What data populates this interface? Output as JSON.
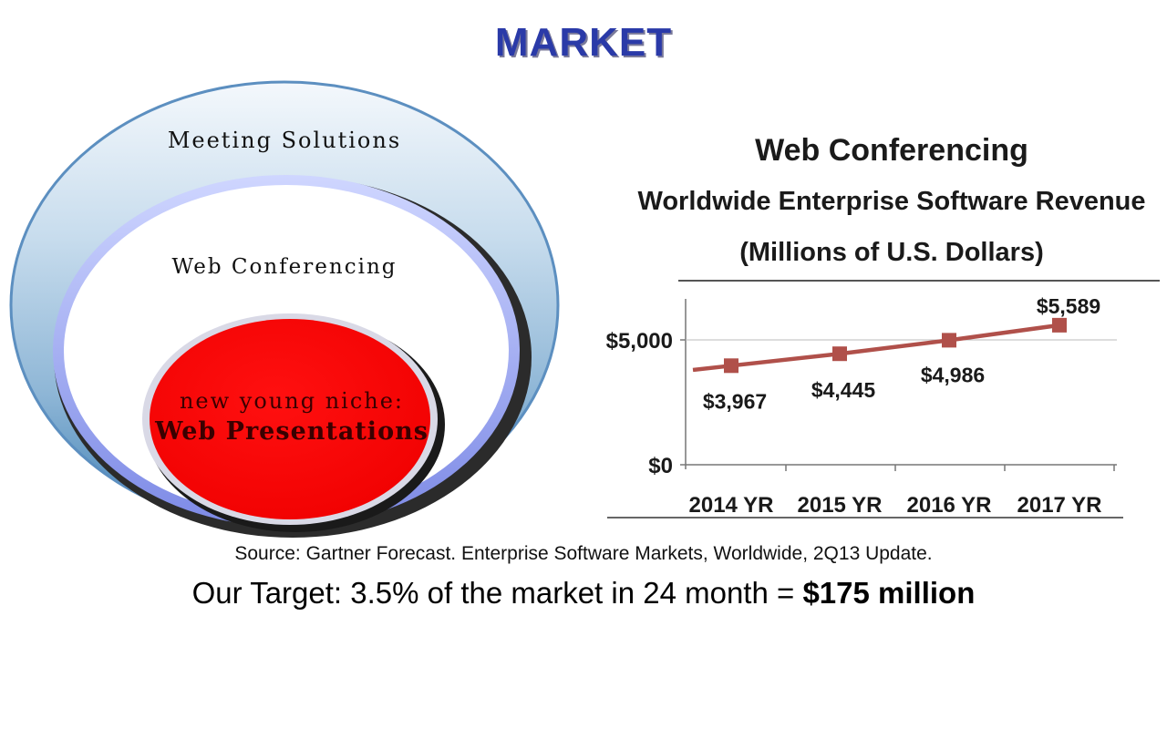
{
  "slide": {
    "title": "MARKET",
    "source": "Source: Gartner Forecast. Enterprise Software Markets, Worldwide, 2Q13 Update.",
    "target_prefix": "Our Target: 3.5% of the market in 24 month = ",
    "target_value": "$175 million"
  },
  "venn": {
    "outer_label": "Meeting Solutions",
    "middle_label": "Web Conferencing",
    "inner_label_line1": "new young niche:",
    "inner_label_line2": "Web Presentations",
    "colors": {
      "outer": "#6f9fc6",
      "middle": "#ffffff",
      "inner": "#ff0000",
      "inner_text": "#3a0000"
    }
  },
  "chart_data": {
    "type": "line",
    "title": "Web Conferencing",
    "subtitle_line1": "Worldwide Enterprise Software Revenue",
    "subtitle_line2": "(Millions of U.S. Dollars)",
    "categories": [
      "2014 YR",
      "2015 YR",
      "2016 YR",
      "2017 YR"
    ],
    "series": [
      {
        "values": [
          3967,
          4445,
          4986,
          5589
        ],
        "color": "#b0504a"
      }
    ],
    "data_labels": [
      "$3,967",
      "$4,445",
      "$4,986",
      "$5,589"
    ],
    "y_tick_labels": [
      "$0",
      "$5,000"
    ],
    "y_ticks": [
      0,
      5000
    ],
    "ylim": [
      0,
      6500
    ],
    "grid": "horizontal at $5,000",
    "legend": "none"
  }
}
